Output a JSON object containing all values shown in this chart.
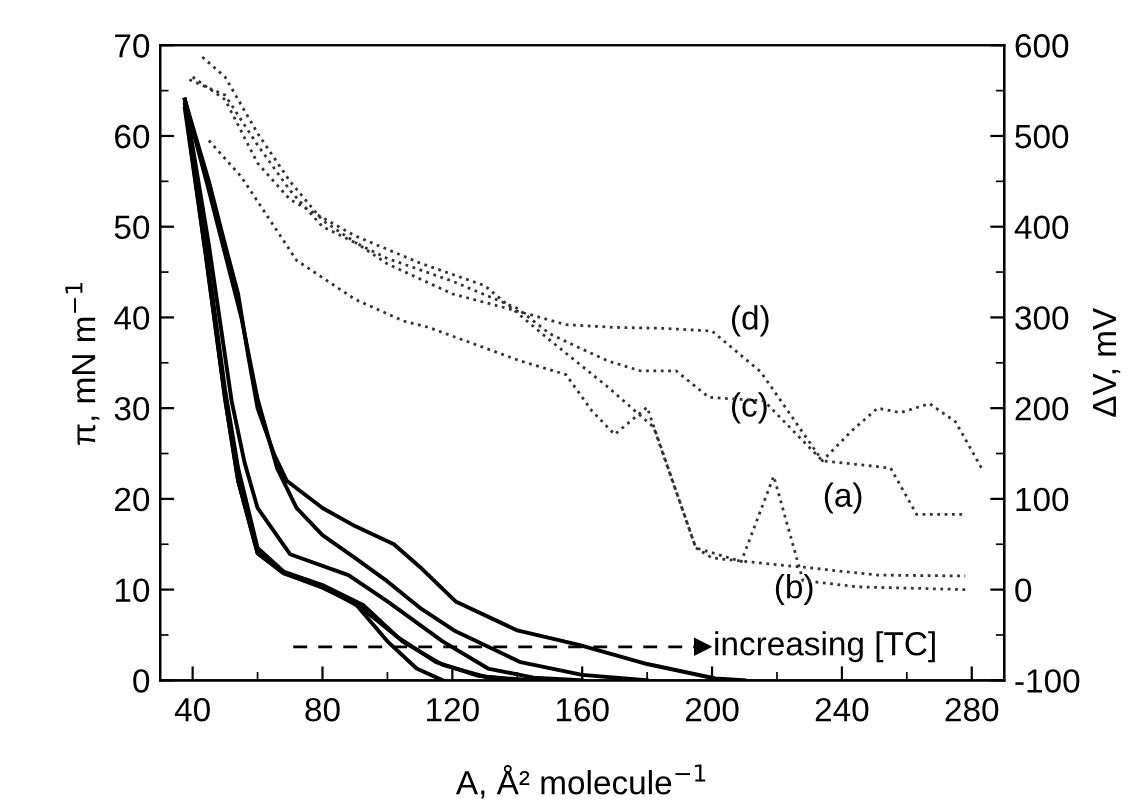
{
  "chart_data": {
    "type": "line",
    "xlabel": "A, Å² molecule$^{−1}$",
    "ylabel": "π, mN m$^{−1}$",
    "y2label": "ΔV, mV",
    "xlim": [
      30,
      290
    ],
    "xticks": [
      40,
      80,
      120,
      160,
      200,
      240,
      280
    ],
    "ylim": [
      0,
      70
    ],
    "yticks": [
      0,
      10,
      20,
      30,
      40,
      50,
      60,
      70
    ],
    "y2lim": [
      -100,
      600
    ],
    "y2ticks": [
      -100,
      0,
      100,
      200,
      300,
      400,
      500,
      600
    ],
    "grid": false,
    "legend": false,
    "series": [
      {
        "color": "#000000",
        "line_style": "solid",
        "x": [
          37.6,
          45,
          50,
          54,
          57,
          60,
          65,
          69,
          80,
          90,
          102,
          110,
          121,
          140,
          159,
          180,
          201,
          210
        ],
        "values": [
          64,
          55,
          48,
          42.6,
          36,
          30,
          25,
          22,
          19,
          17,
          15,
          12.5,
          8.7,
          5.5,
          3.9,
          1.8,
          0.2,
          0
        ]
      },
      {
        "color": "#000000",
        "line_style": "solid",
        "x": [
          37.6,
          45,
          50,
          55,
          60,
          66,
          72,
          80,
          90,
          100,
          110,
          121,
          141,
          160,
          180
        ],
        "values": [
          64,
          54,
          47,
          40,
          31,
          23.4,
          19,
          16,
          13.5,
          10.9,
          8,
          5.4,
          2,
          0.6,
          0
        ]
      },
      {
        "color": "#000000",
        "line_style": "solid",
        "x": [
          37.6,
          45,
          52,
          56,
          60,
          70,
          88,
          100,
          117,
          131,
          145,
          160
        ],
        "values": [
          64,
          48,
          30.8,
          24,
          19,
          13.9,
          11.6,
          8.7,
          4.3,
          1.3,
          0.3,
          0
        ]
      },
      {
        "color": "#000000",
        "line_style": "solid",
        "x": [
          37.6,
          44,
          50,
          54,
          60,
          68,
          80,
          92.5,
          104.6,
          117,
          130,
          145
        ],
        "values": [
          64,
          48,
          32,
          23.4,
          14.6,
          12,
          10.5,
          8.3,
          4.3,
          1.7,
          0.4,
          0
        ]
      },
      {
        "color": "#000000",
        "line_style": "solid",
        "x": [
          37.6,
          44,
          50,
          54,
          60,
          68,
          80,
          92,
          103,
          115,
          128,
          140
        ],
        "values": [
          63,
          47,
          31,
          22,
          14,
          11.8,
          10.3,
          8,
          4.8,
          2,
          0.5,
          0
        ]
      },
      {
        "color": "#000000",
        "line_style": "solid",
        "x": [
          37.6,
          44,
          50,
          54,
          60,
          68,
          80,
          90,
          100,
          109,
          117
        ],
        "values": [
          63.5,
          47,
          31,
          22,
          14,
          11.8,
          10.2,
          8.5,
          4.3,
          1.3,
          0
        ]
      },
      {
        "color": "#000000",
        "line_style": "dashed",
        "marker": "triangle",
        "x": [
          71,
          197
        ],
        "values": [
          3.7,
          3.7
        ]
      },
      {
        "color": "#333333",
        "line_style": "dotted",
        "axis": "y2",
        "x": [
          45,
          55,
          72,
          90,
          105,
          112.7,
          141,
          155,
          163,
          170,
          180,
          195,
          209,
          219,
          228,
          245,
          278
        ],
        "values": [
          495,
          455,
          363,
          320,
          296,
          289,
          252,
          237,
          197,
          171,
          201,
          46,
          31,
          125,
          10,
          3,
          0
        ]
      },
      {
        "color": "#333333",
        "line_style": "dotted",
        "axis": "y2",
        "x": [
          40,
          50,
          60,
          70,
          90,
          110,
          130,
          150,
          168,
          182,
          195,
          200,
          210,
          230,
          251,
          278
        ],
        "values": [
          565,
          540,
          470,
          430,
          390,
          360,
          335,
          275,
          223,
          179,
          46,
          35,
          31,
          24,
          16,
          15
        ]
      },
      {
        "color": "#333333",
        "line_style": "dotted",
        "axis": "y2",
        "x": [
          39,
          50,
          60,
          70,
          80,
          100,
          120,
          140,
          150,
          160,
          168,
          178,
          189,
          199,
          216,
          234,
          255,
          263,
          278
        ],
        "values": [
          562,
          545,
          490,
          440,
          400,
          365,
          340,
          310,
          282,
          265,
          252,
          241,
          241,
          212,
          208,
          142,
          134,
          83,
          83
        ]
      },
      {
        "color": "#333333",
        "line_style": "dotted",
        "axis": "y2",
        "x": [
          43,
          50,
          60,
          70,
          80,
          100,
          120,
          140,
          155,
          170,
          185,
          200,
          215,
          234,
          243,
          251,
          258,
          267,
          275,
          283
        ],
        "values": [
          587,
          565,
          503,
          450,
          407,
          359,
          326,
          307,
          292,
          289,
          288,
          285,
          240,
          142,
          175,
          200,
          195,
          205,
          185,
          134
        ]
      }
    ],
    "annotations": [
      "(d)",
      "(c)",
      "(a)",
      "(b)",
      "increasing [TC]"
    ]
  }
}
